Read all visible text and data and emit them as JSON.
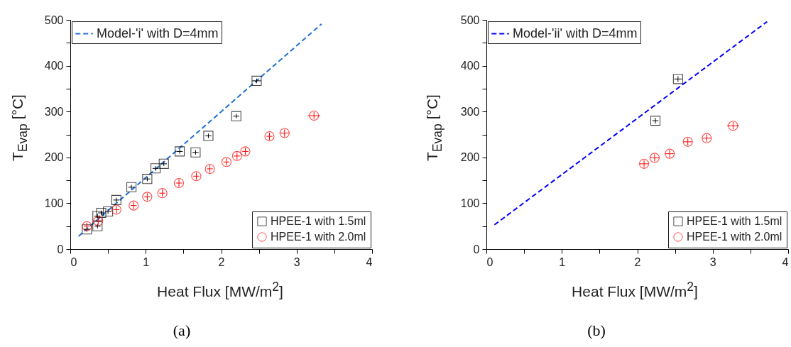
{
  "chart_data": [
    {
      "type": "scatter",
      "xlabel": "Heat Flux [MW/m$^{2}$]",
      "ylabel": "T$_{Evap}$ [°C]",
      "annotations": [
        "(a)"
      ],
      "xlim": [
        0,
        4
      ],
      "xticks": [
        0,
        {
          "value": 0.5,
          "label": null
        },
        1,
        {
          "value": 1.5,
          "label": null
        },
        2,
        {
          "value": 2.5,
          "label": null
        },
        3,
        {
          "value": 3.5,
          "label": null
        },
        4
      ],
      "ylim": [
        0,
        500
      ],
      "yticks": [
        0,
        {
          "value": 50,
          "label": null
        },
        100,
        {
          "value": 150,
          "label": null
        },
        200,
        {
          "value": 250,
          "label": null
        },
        300,
        {
          "value": 350,
          "label": null
        },
        400,
        {
          "value": 450,
          "label": null
        },
        500
      ],
      "grid": false,
      "legend": "bottom right",
      "series": [
        {
          "name": "Model-'i' with D=4mm",
          "type": "line",
          "line_style": "dashed",
          "color": "#1f6fd8",
          "x": [
            0.11,
            3.33
          ],
          "values": [
            28,
            491
          ]
        },
        {
          "name": "HPEE-1 with 1.5ml",
          "marker": "square",
          "color": "#000000",
          "x": [
            0.22,
            0.36,
            0.36,
            0.41,
            0.5,
            0.61,
            0.81,
            1.02,
            1.13,
            1.24,
            1.45,
            1.66,
            1.83,
            2.2,
            2.47
          ],
          "values": [
            43,
            50,
            72,
            79,
            82,
            107,
            135,
            153,
            176,
            186,
            213,
            211,
            247,
            290,
            367
          ],
          "xerrors": [
            0.04,
            0.04,
            0.04,
            0.04,
            0.04,
            0.04,
            0.04,
            0.04,
            0.04,
            0.04,
            0.04,
            0.04,
            0.04,
            0.04,
            0.06
          ],
          "errors": [
            5,
            5,
            5,
            5,
            5,
            5,
            5,
            5,
            5,
            5,
            5,
            5,
            5,
            5,
            5
          ]
        },
        {
          "name": "HPEE-1 with 2.0ml",
          "marker": "circle",
          "color": "#ff0000",
          "x": [
            0.22,
            0.37,
            0.61,
            0.84,
            1.02,
            1.22,
            1.44,
            1.67,
            1.85,
            2.07,
            2.21,
            2.32,
            2.64,
            2.84,
            3.23
          ],
          "values": [
            50,
            61,
            86,
            95,
            114,
            122,
            144,
            159,
            175,
            190,
            203,
            213,
            246,
            253,
            291
          ],
          "xerrors": [
            0.04,
            0.04,
            0.04,
            0.04,
            0.04,
            0.04,
            0.04,
            0.04,
            0.04,
            0.04,
            0.04,
            0.04,
            0.04,
            0.06,
            0.08
          ],
          "errors": [
            8,
            8,
            8,
            8,
            8,
            8,
            8,
            8,
            8,
            8,
            8,
            8,
            8,
            8,
            8
          ]
        }
      ]
    },
    {
      "type": "scatter",
      "xlabel": "Heat Flux [MW/m$^{2}$]",
      "ylabel": "T$_{Evap}$ [°C]",
      "annotations": [
        "(b)"
      ],
      "xlim": [
        0,
        4
      ],
      "xticks": [
        0,
        {
          "value": 0.5,
          "label": null
        },
        1,
        {
          "value": 1.5,
          "label": null
        },
        2,
        {
          "value": 2.5,
          "label": null
        },
        3,
        {
          "value": 3.5,
          "label": null
        },
        4
      ],
      "ylim": [
        0,
        500
      ],
      "yticks": [
        0,
        {
          "value": 50,
          "label": null
        },
        100,
        {
          "value": 150,
          "label": null
        },
        200,
        {
          "value": 250,
          "label": null
        },
        300,
        {
          "value": 350,
          "label": null
        },
        400,
        {
          "value": 450,
          "label": null
        },
        500
      ],
      "grid": false,
      "legend": "bottom right",
      "series": [
        {
          "name": "Model-'ii' with D=4mm",
          "type": "line",
          "line_style": "dashed",
          "color": "#0000ff",
          "x": [
            0.107,
            3.72
          ],
          "values": [
            53,
            496
          ]
        },
        {
          "name": "HPEE-1 with 1.5ml",
          "marker": "square",
          "color": "#000000",
          "x": [
            2.24,
            2.54
          ],
          "values": [
            280,
            371
          ],
          "xerrors": [
            0.04,
            0.05
          ],
          "errors": [
            6,
            6
          ]
        },
        {
          "name": "HPEE-1 with 2.0ml",
          "marker": "circle",
          "color": "#ff0000",
          "x": [
            2.09,
            2.23,
            2.43,
            2.67,
            2.92,
            3.27
          ],
          "values": [
            186,
            199,
            208,
            234,
            242,
            269
          ],
          "xerrors": [
            0.06,
            0.06,
            0.06,
            0.06,
            0.06,
            0.08
          ],
          "errors": [
            8,
            8,
            8,
            8,
            8,
            8
          ]
        }
      ]
    }
  ]
}
